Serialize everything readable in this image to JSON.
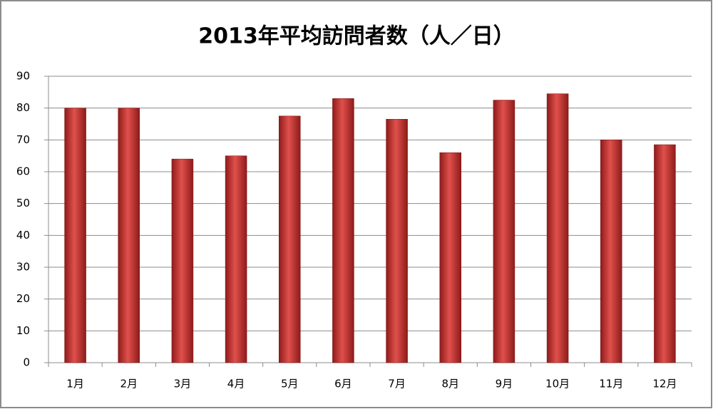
{
  "chart_data": {
    "type": "bar",
    "title": "2013年平均訪問者数（人／日）",
    "categories": [
      "1月",
      "2月",
      "3月",
      "4月",
      "5月",
      "6月",
      "7月",
      "8月",
      "9月",
      "10月",
      "11月",
      "12月"
    ],
    "values": [
      80,
      80,
      64,
      65,
      77.5,
      83,
      76.5,
      66,
      82.5,
      84.5,
      70,
      68.5
    ],
    "color": "#c0302e",
    "ylim": [
      0,
      90
    ],
    "yticks": [
      0,
      10,
      20,
      30,
      40,
      50,
      60,
      70,
      80,
      90
    ],
    "grid": true
  }
}
